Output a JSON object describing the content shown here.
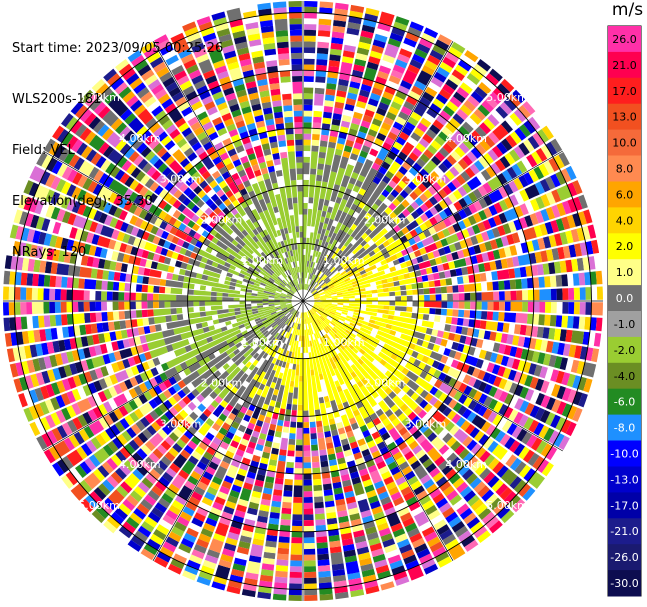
{
  "header": {
    "start_time": "Start time: 2023/09/05 00:25:26",
    "instrument": "WLS200s-181",
    "field": "Field: VEL",
    "elevation": "Elevation(deg): 35.30",
    "nrays": "NRays: 120"
  },
  "chart_data": {
    "type": "heatmap",
    "projection": "polar-ppi",
    "field": "VEL",
    "units": "m/s",
    "nrays": 120,
    "range_ring_labels": [
      "1.00km",
      "2.00km",
      "3.00km",
      "4.00km",
      "5.00km"
    ],
    "max_range_km": 5.2,
    "colorbar": {
      "title": "m/s",
      "tick_labels": [
        "26.0",
        "21.0",
        "17.0",
        "13.0",
        "10.0",
        "8.0",
        "6.0",
        "4.0",
        "2.0",
        "1.0",
        "0.0",
        "-1.0",
        "-2.0",
        "-4.0",
        "-6.0",
        "-8.0",
        "-10.0",
        "-13.0",
        "-17.0",
        "-21.0",
        "-26.0",
        "-30.0"
      ],
      "colors": [
        "#ff30a8",
        "#ff0050",
        "#ff1e1e",
        "#f25020",
        "#f56a3a",
        "#ff8a50",
        "#ffa500",
        "#ffd400",
        "#ffff00",
        "#ffff88",
        "#707070",
        "#a0a0a0",
        "#9acd32",
        "#6b8e23",
        "#228b22",
        "#1e90ff",
        "#0000ff",
        "#0000cd",
        "#0000a8",
        "#1c1c8c",
        "#1a1a70",
        "#0d0d50"
      ]
    },
    "regions": [
      {
        "range_km": [
          0.0,
          2.6
        ],
        "sector": "north-west",
        "value_class": "-2.0"
      },
      {
        "range_km": [
          0.0,
          2.6
        ],
        "sector": "south-east",
        "value_class": "2.0"
      },
      {
        "range_km": [
          2.6,
          5.2
        ],
        "sector": "all",
        "value_class": "noise"
      }
    ]
  }
}
